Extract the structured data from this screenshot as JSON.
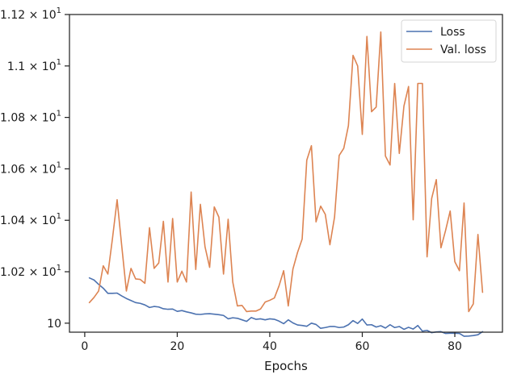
{
  "chart_data": {
    "type": "line",
    "title": "",
    "xlabel": "Epochs",
    "ylabel": "",
    "xlim": [
      -3.3,
      90.3
    ],
    "ylim": [
      9.965,
      11.2
    ],
    "x_ticks": [
      0,
      20,
      40,
      60,
      80
    ],
    "y_ticks": [
      {
        "value": 10.0,
        "label": "10",
        "exp": ""
      },
      {
        "value": 10.2,
        "label": "1.02 × 10",
        "exp": "1"
      },
      {
        "value": 10.4,
        "label": "1.04 × 10",
        "exp": "1"
      },
      {
        "value": 10.6,
        "label": "1.06 × 10",
        "exp": "1"
      },
      {
        "value": 10.8,
        "label": "1.08 × 10",
        "exp": "1"
      },
      {
        "value": 11.0,
        "label": "1.1 × 10",
        "exp": "1"
      },
      {
        "value": 11.2,
        "label": "1.12 × 10",
        "exp": "1"
      }
    ],
    "grid": false,
    "legend_position": "top-right",
    "x": [
      1,
      2,
      3,
      4,
      5,
      6,
      7,
      8,
      9,
      10,
      11,
      12,
      13,
      14,
      15,
      16,
      17,
      18,
      19,
      20,
      21,
      22,
      23,
      24,
      25,
      26,
      27,
      28,
      29,
      30,
      31,
      32,
      33,
      34,
      35,
      36,
      37,
      38,
      39,
      40,
      41,
      42,
      43,
      44,
      45,
      46,
      47,
      48,
      49,
      50,
      51,
      52,
      53,
      54,
      55,
      56,
      57,
      58,
      59,
      60,
      61,
      62,
      63,
      64,
      65,
      66,
      67,
      68,
      69,
      70,
      71,
      72,
      73,
      74,
      75,
      76,
      77,
      78,
      79,
      80,
      81,
      82,
      83,
      84,
      85,
      86
    ],
    "series": [
      {
        "name": "Loss",
        "color": "#4c72b0",
        "values": [
          10.176,
          10.168,
          10.151,
          10.136,
          10.116,
          10.116,
          10.117,
          10.106,
          10.096,
          10.088,
          10.08,
          10.077,
          10.071,
          10.061,
          10.065,
          10.063,
          10.056,
          10.054,
          10.055,
          10.046,
          10.049,
          10.044,
          10.04,
          10.035,
          10.034,
          10.036,
          10.037,
          10.035,
          10.033,
          10.03,
          10.017,
          10.021,
          10.019,
          10.013,
          10.007,
          10.022,
          10.015,
          10.017,
          10.013,
          10.017,
          10.015,
          10.008,
          9.998,
          10.013,
          10.001,
          9.993,
          9.991,
          9.988,
          10.0,
          9.995,
          9.98,
          9.983,
          9.987,
          9.987,
          9.983,
          9.985,
          9.994,
          10.01,
          9.999,
          10.016,
          9.993,
          9.994,
          9.985,
          9.99,
          9.981,
          9.994,
          9.983,
          9.987,
          9.976,
          9.984,
          9.977,
          9.991,
          9.969,
          9.972,
          9.963,
          9.966,
          9.967,
          9.96,
          9.961,
          9.961,
          9.96,
          9.949,
          9.95,
          9.952,
          9.955,
          9.967
        ]
      },
      {
        "name": "Val. loss",
        "color": "#dd8452",
        "values": [
          10.08,
          10.1,
          10.125,
          10.223,
          10.191,
          10.33,
          10.48,
          10.3,
          10.125,
          10.213,
          10.172,
          10.17,
          10.155,
          10.371,
          10.213,
          10.234,
          10.396,
          10.16,
          10.407,
          10.16,
          10.202,
          10.16,
          10.51,
          10.209,
          10.462,
          10.297,
          10.217,
          10.452,
          10.412,
          10.191,
          10.404,
          10.16,
          10.067,
          10.069,
          10.045,
          10.047,
          10.047,
          10.055,
          10.082,
          10.089,
          10.098,
          10.145,
          10.204,
          10.067,
          10.21,
          10.275,
          10.327,
          10.634,
          10.69,
          10.394,
          10.455,
          10.423,
          10.305,
          10.412,
          10.652,
          10.68,
          10.768,
          11.041,
          11.0,
          10.734,
          11.115,
          10.822,
          10.84,
          11.132,
          10.65,
          10.615,
          10.932,
          10.66,
          10.844,
          10.92,
          10.402,
          10.932,
          10.932,
          10.258,
          10.485,
          10.558,
          10.293,
          10.36,
          10.436,
          10.239,
          10.204,
          10.467,
          10.045,
          10.075,
          10.345,
          10.12
        ]
      }
    ]
  }
}
